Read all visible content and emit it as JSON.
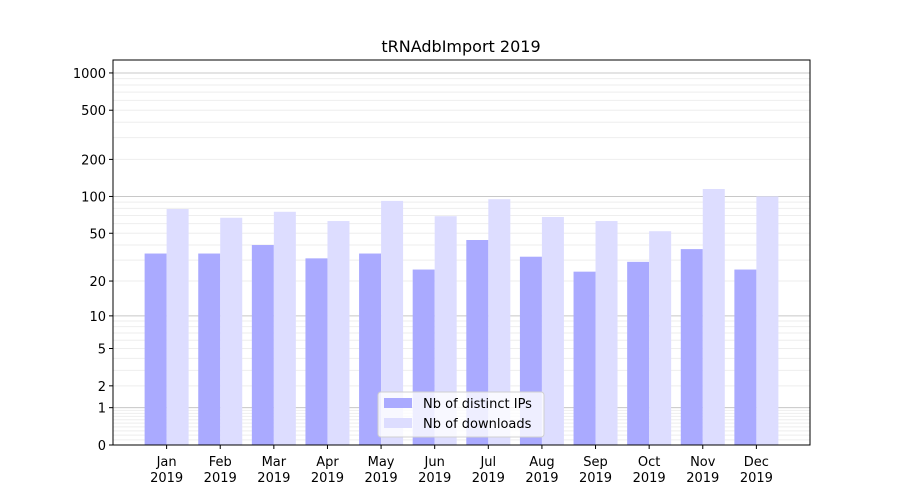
{
  "chart_data": {
    "type": "bar",
    "title": "tRNAdbImport 2019",
    "xlabel": "",
    "ylabel": "",
    "yscale": "log10(1+y)",
    "ylim": [
      0,
      1300
    ],
    "yticks": [
      0,
      1,
      2,
      5,
      10,
      20,
      50,
      100,
      200,
      500,
      1000
    ],
    "categories": [
      "Jan\n2019",
      "Feb\n2019",
      "Mar\n2019",
      "Apr\n2019",
      "May\n2019",
      "Jun\n2019",
      "Jul\n2019",
      "Aug\n2019",
      "Sep\n2019",
      "Oct\n2019",
      "Nov\n2019",
      "Dec\n2019"
    ],
    "series": [
      {
        "name": "Nb of distinct IPs",
        "color": "#aaaaff",
        "values": [
          34,
          34,
          40,
          31,
          34,
          25,
          44,
          32,
          24,
          29,
          37,
          25
        ]
      },
      {
        "name": "Nb of downloads",
        "color": "#ddddff",
        "values": [
          79,
          67,
          75,
          63,
          92,
          69,
          95,
          68,
          63,
          52,
          115,
          100
        ]
      }
    ],
    "grid": true,
    "legend": "lower-center"
  }
}
